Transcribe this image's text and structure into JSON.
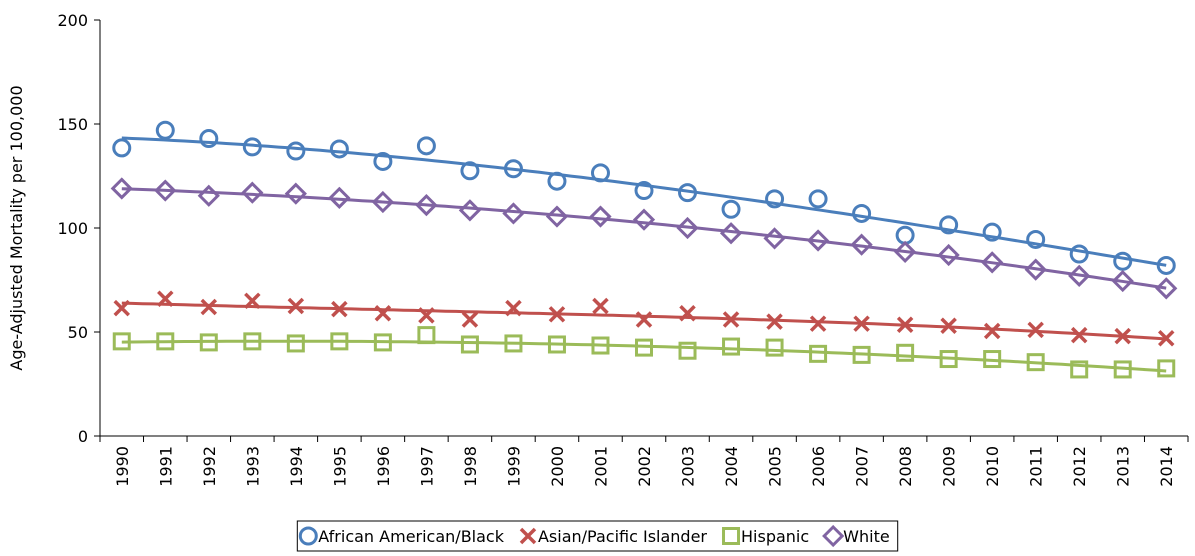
{
  "chart_data": {
    "type": "scatter-trend",
    "y_label": "Age-Adjusted Mortality per 100,000",
    "categories": [
      "1990",
      "1991",
      "1992",
      "1993",
      "1994",
      "1995",
      "1996",
      "1997",
      "1998",
      "1999",
      "2000",
      "2001",
      "2002",
      "2003",
      "2004",
      "2005",
      "2006",
      "2007",
      "2008",
      "2009",
      "2010",
      "2011",
      "2012",
      "2013",
      "2014"
    ],
    "ylim": [
      0,
      200
    ],
    "yticks": [
      0,
      50,
      100,
      150,
      200
    ],
    "series": [
      {
        "name": "African American/Black",
        "color": "#4a7ebb",
        "marker": "circle",
        "values": [
          138.5,
          147,
          143,
          139,
          137,
          138,
          132,
          139.5,
          127.5,
          128.5,
          122.5,
          126.5,
          118,
          117,
          109,
          114,
          114,
          107,
          96.5,
          101.5,
          98,
          94.5,
          87.5,
          84,
          82
        ]
      },
      {
        "name": "Asian/Pacific Islander",
        "color": "#c0504d",
        "marker": "x",
        "values": [
          61.5,
          66,
          62,
          65,
          62.5,
          61,
          59,
          58,
          56,
          61.5,
          58.5,
          62.5,
          56,
          59,
          56,
          55,
          54,
          54,
          53.5,
          53,
          50.5,
          51,
          48.5,
          48,
          47
        ]
      },
      {
        "name": "Hispanic",
        "color": "#9bbb59",
        "marker": "square",
        "values": [
          45.5,
          45.5,
          45,
          45.5,
          44.5,
          45.5,
          45,
          48.5,
          44,
          44.5,
          44,
          43.5,
          42.5,
          41,
          43,
          42.5,
          39.5,
          39,
          40,
          37,
          37,
          35.5,
          32,
          32,
          32.5
        ]
      },
      {
        "name": "White",
        "color": "#8064a2",
        "marker": "diamond",
        "values": [
          119,
          118,
          115.5,
          117,
          116.5,
          114.5,
          112.5,
          111,
          108.5,
          107,
          105.5,
          105.5,
          104,
          100,
          97.5,
          95,
          94,
          92,
          88.5,
          87,
          83.5,
          80,
          77,
          74.5,
          71
        ]
      }
    ]
  }
}
